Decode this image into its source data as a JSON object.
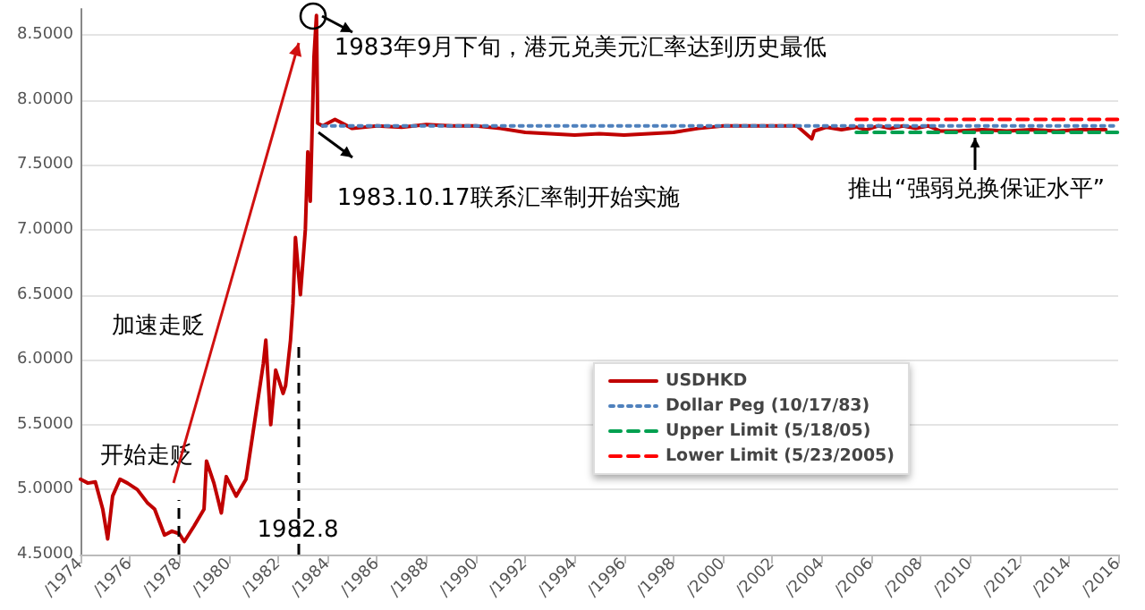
{
  "chart_data": {
    "type": "line",
    "xlim": [
      1974,
      2016
    ],
    "ylim": [
      4.5,
      8.7
    ],
    "xticks": [
      {
        "value": 1974,
        "label": "/1974"
      },
      {
        "value": 1976,
        "label": "/1976"
      },
      {
        "value": 1978,
        "label": "/1978"
      },
      {
        "value": 1980,
        "label": "/1980"
      },
      {
        "value": 1982,
        "label": "/1982"
      },
      {
        "value": 1984,
        "label": "/1984"
      },
      {
        "value": 1986,
        "label": "/1986"
      },
      {
        "value": 1988,
        "label": "/1988"
      },
      {
        "value": 1990,
        "label": "/1990"
      },
      {
        "value": 1992,
        "label": "/1992"
      },
      {
        "value": 1994,
        "label": "/1994"
      },
      {
        "value": 1996,
        "label": "/1996"
      },
      {
        "value": 1998,
        "label": "/1998"
      },
      {
        "value": 2000,
        "label": "/2000"
      },
      {
        "value": 2002,
        "label": "/2002"
      },
      {
        "value": 2004,
        "label": "/2004"
      },
      {
        "value": 2006,
        "label": "/2006"
      },
      {
        "value": 2008,
        "label": "/2008"
      },
      {
        "value": 2010,
        "label": "/2010"
      },
      {
        "value": 2012,
        "label": "/2012"
      },
      {
        "value": 2014,
        "label": "/2014"
      },
      {
        "value": 2016,
        "label": "/2016"
      }
    ],
    "yticks": [
      {
        "value": 4.5,
        "label": "4.5000"
      },
      {
        "value": 5,
        "label": "5.0000"
      },
      {
        "value": 5.5,
        "label": "5.5000"
      },
      {
        "value": 6,
        "label": "6.0000"
      },
      {
        "value": 6.5,
        "label": "6.5000"
      },
      {
        "value": 7,
        "label": "7.0000"
      },
      {
        "value": 7.5,
        "label": "7.5000"
      },
      {
        "value": 8,
        "label": "8.0000"
      },
      {
        "value": 8.5,
        "label": "8.5000"
      }
    ],
    "grid": "y",
    "legend": "bottom right",
    "marker": "none",
    "series": [
      {
        "name": "USDHKD",
        "color": "#c00000",
        "line_style": "solid",
        "x": [
          1974.0,
          1974.3,
          1974.6,
          1974.9,
          1975.1,
          1975.3,
          1975.6,
          1975.9,
          1976.3,
          1976.7,
          1977.0,
          1977.4,
          1977.7,
          1978.0,
          1978.2,
          1978.6,
          1979.0,
          1979.1,
          1979.4,
          1979.7,
          1979.9,
          1980.3,
          1980.7,
          1981.0,
          1981.4,
          1981.5,
          1981.7,
          1981.9,
          1982.2,
          1982.3,
          1982.5,
          1982.6,
          1982.7,
          1982.9,
          1983.1,
          1983.2,
          1983.3,
          1983.45,
          1983.55,
          1983.6,
          1983.8,
          1984.3,
          1985,
          1986,
          1987,
          1988,
          1989,
          1990,
          1991,
          1992,
          1993,
          1994,
          1995,
          1996,
          1997,
          1998,
          1999,
          2000,
          2001,
          2002,
          2003,
          2003.6,
          2003.7,
          2004.2,
          2004.8,
          2005.4,
          2005.8,
          2006.3,
          2006.8,
          2007.3,
          2007.8,
          2008.3,
          2008.8,
          2009.5,
          2010.5,
          2011.5,
          2012.5,
          2013.5,
          2014.5,
          2015.5
        ],
        "values": [
          5.08,
          5.05,
          5.06,
          4.85,
          4.62,
          4.95,
          5.08,
          5.05,
          5.0,
          4.9,
          4.85,
          4.65,
          4.68,
          4.66,
          4.6,
          4.72,
          4.85,
          5.22,
          5.05,
          4.82,
          5.1,
          4.95,
          5.08,
          5.46,
          5.97,
          6.15,
          5.5,
          5.92,
          5.74,
          5.8,
          6.15,
          6.43,
          6.94,
          6.5,
          7.0,
          7.6,
          7.22,
          8.33,
          8.65,
          7.82,
          7.8,
          7.85,
          7.78,
          7.8,
          7.79,
          7.81,
          7.8,
          7.8,
          7.78,
          7.75,
          7.74,
          7.73,
          7.74,
          7.73,
          7.74,
          7.75,
          7.78,
          7.8,
          7.8,
          7.8,
          7.8,
          7.7,
          7.76,
          7.79,
          7.77,
          7.79,
          7.77,
          7.8,
          7.78,
          7.8,
          7.78,
          7.8,
          7.76,
          7.76,
          7.77,
          7.76,
          7.77,
          7.76,
          7.77,
          7.77
        ]
      },
      {
        "name": "Dollar Peg (10/17/83)",
        "color": "#4f81bd",
        "line_style": "dotted",
        "x": [
          1983.8,
          2016
        ],
        "values": [
          7.8,
          7.8
        ]
      },
      {
        "name": "Upper Limit (5/18/05)",
        "color": "#00a050",
        "line_style": "dashed",
        "x": [
          2005.4,
          2016
        ],
        "values": [
          7.75,
          7.75
        ]
      },
      {
        "name": "Lower Limit (5/23/2005)",
        "color": "#ff0000",
        "line_style": "dashed",
        "x": [
          2005.4,
          2016
        ],
        "values": [
          7.85,
          7.85
        ]
      }
    ],
    "ref_lines": [
      {
        "axis": "x",
        "value": 1978,
        "label": null,
        "color": "#000000",
        "line_style": "dashed"
      },
      {
        "axis": "x",
        "value": 1982.8,
        "label": "1982.8",
        "color": "#000000",
        "line_style": "dashed"
      }
    ],
    "annotations": [
      {
        "text": "1983年9月下旬，港元兑美元汇率达到历史最低",
        "x": 1983.55,
        "y": 8.65
      },
      {
        "text": "1983.10.17联系汇率制开始实施",
        "x": 1983.8,
        "y": 7.8
      },
      {
        "text": "推出“强弱兑换保证水平”",
        "x": 2010.5,
        "y": 7.76
      },
      {
        "text": "开始走贬",
        "x": 1978,
        "y": 4.66
      },
      {
        "text": "加速走贬",
        "x": 1981.5,
        "y": 6.15
      }
    ]
  }
}
